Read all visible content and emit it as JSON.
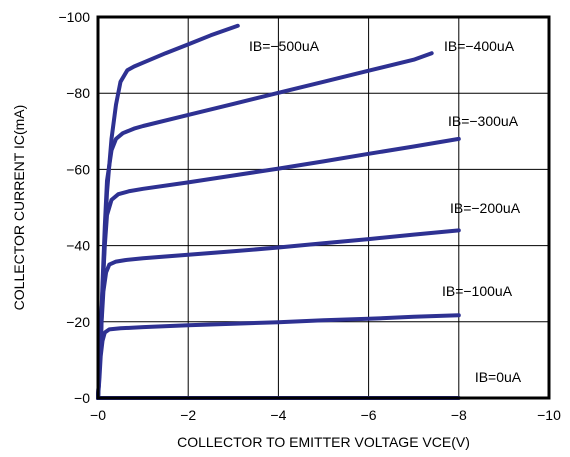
{
  "chart_data": {
    "type": "line",
    "xlabel": "COLLECTOR TO EMITTER VOLTAGE VCE(V)",
    "ylabel": "COLLECTOR CURRENT IC(mA)",
    "xlim": [
      0,
      -10
    ],
    "ylim": [
      0,
      -100
    ],
    "x_ticks": [
      "−0",
      "−2",
      "−4",
      "−6",
      "−8",
      "−10"
    ],
    "y_ticks": [
      "−0",
      "−20",
      "−40",
      "−60",
      "−80",
      "−100"
    ],
    "grid": true,
    "line_color": "#2e3192",
    "series": [
      {
        "name": "IB=0uA",
        "label": "IB=0uA",
        "points": [
          [
            0,
            0
          ],
          [
            -8,
            0
          ]
        ]
      },
      {
        "name": "IB=−100uA",
        "label": "IB=−100uA",
        "points": [
          [
            0,
            0
          ],
          [
            -0.03,
            -5
          ],
          [
            -0.06,
            -11
          ],
          [
            -0.1,
            -15
          ],
          [
            -0.15,
            -17.2
          ],
          [
            -0.25,
            -18
          ],
          [
            -0.5,
            -18.3
          ],
          [
            -1,
            -18.6
          ],
          [
            -2,
            -19.1
          ],
          [
            -3,
            -19.5
          ],
          [
            -4,
            -19.9
          ],
          [
            -5,
            -20.4
          ],
          [
            -6,
            -20.8
          ],
          [
            -7,
            -21.3
          ],
          [
            -8,
            -21.7
          ]
        ]
      },
      {
        "name": "IB=−200uA",
        "label": "IB=−200uA",
        "points": [
          [
            0,
            0
          ],
          [
            -0.04,
            -9
          ],
          [
            -0.08,
            -20
          ],
          [
            -0.12,
            -28
          ],
          [
            -0.18,
            -33
          ],
          [
            -0.25,
            -35
          ],
          [
            -0.4,
            -35.8
          ],
          [
            -0.6,
            -36.2
          ],
          [
            -1,
            -36.7
          ],
          [
            -2,
            -37.6
          ],
          [
            -3,
            -38.5
          ],
          [
            -4,
            -39.5
          ],
          [
            -5,
            -40.6
          ],
          [
            -6,
            -41.7
          ],
          [
            -7,
            -42.9
          ],
          [
            -8,
            -44
          ]
        ]
      },
      {
        "name": "IB=−300uA",
        "label": "IB=−300uA",
        "points": [
          [
            0,
            0
          ],
          [
            -0.05,
            -12
          ],
          [
            -0.1,
            -28
          ],
          [
            -0.15,
            -40
          ],
          [
            -0.2,
            -48
          ],
          [
            -0.3,
            -52
          ],
          [
            -0.45,
            -53.5
          ],
          [
            -0.7,
            -54.3
          ],
          [
            -1,
            -54.9
          ],
          [
            -2,
            -56.6
          ],
          [
            -3,
            -58.4
          ],
          [
            -4,
            -60.2
          ],
          [
            -5,
            -62.1
          ],
          [
            -6,
            -64.1
          ],
          [
            -7,
            -66
          ],
          [
            -8,
            -68
          ]
        ]
      },
      {
        "name": "IB=−400uA",
        "label": "IB=−400uA",
        "points": [
          [
            0,
            0
          ],
          [
            -0.05,
            -12
          ],
          [
            -0.1,
            -30
          ],
          [
            -0.15,
            -45
          ],
          [
            -0.2,
            -57
          ],
          [
            -0.3,
            -65
          ],
          [
            -0.4,
            -68
          ],
          [
            -0.55,
            -69.5
          ],
          [
            -0.8,
            -70.7
          ],
          [
            -1,
            -71.4
          ],
          [
            -2,
            -74.3
          ],
          [
            -3,
            -77.2
          ],
          [
            -4,
            -80.1
          ],
          [
            -5,
            -83
          ],
          [
            -6,
            -85.9
          ],
          [
            -7,
            -88.8
          ],
          [
            -7.4,
            -90.5
          ]
        ]
      },
      {
        "name": "IB=−500uA",
        "label": "IB=−500uA",
        "points": [
          [
            0,
            0
          ],
          [
            -0.05,
            -12
          ],
          [
            -0.1,
            -28
          ],
          [
            -0.15,
            -42
          ],
          [
            -0.2,
            -54
          ],
          [
            -0.3,
            -68
          ],
          [
            -0.4,
            -77
          ],
          [
            -0.5,
            -83
          ],
          [
            -0.65,
            -86
          ],
          [
            -0.8,
            -87
          ],
          [
            -1,
            -88
          ],
          [
            -1.5,
            -90.5
          ],
          [
            -2,
            -92.8
          ],
          [
            -2.5,
            -95.2
          ],
          [
            -3.1,
            -97.7
          ]
        ]
      }
    ]
  }
}
